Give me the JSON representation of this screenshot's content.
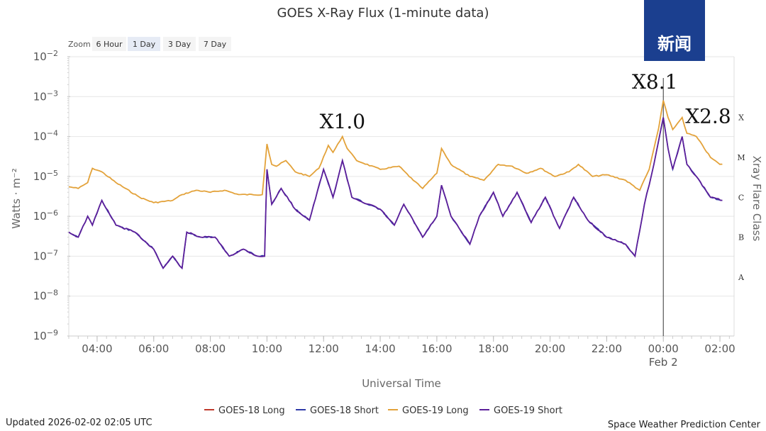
{
  "chart_data": {
    "type": "line",
    "title": "GOES X-Ray Flux (1-minute data)",
    "xlabel": "Universal Time",
    "ylabel": "Watts · m⁻²",
    "y2label": "Xray Flare Class",
    "y_scale": "log",
    "ylim": [
      "1e-9",
      "1e-2"
    ],
    "y_ticks": [
      {
        "value": "1e-2",
        "base": "10",
        "exp": "−2"
      },
      {
        "value": "1e-3",
        "base": "10",
        "exp": "−3"
      },
      {
        "value": "1e-4",
        "base": "10",
        "exp": "−4"
      },
      {
        "value": "1e-5",
        "base": "10",
        "exp": "−5"
      },
      {
        "value": "1e-6",
        "base": "10",
        "exp": "−6"
      },
      {
        "value": "1e-7",
        "base": "10",
        "exp": "−7"
      },
      {
        "value": "1e-8",
        "base": "10",
        "exp": "−8"
      },
      {
        "value": "1e-9",
        "base": "10",
        "exp": "−9"
      }
    ],
    "xlim": [
      "2026-02-01T03:00",
      "2026-02-02T02:30"
    ],
    "x_ticks": [
      {
        "t": "2026-02-01T04:00",
        "label": "04:00"
      },
      {
        "t": "2026-02-01T06:00",
        "label": "06:00"
      },
      {
        "t": "2026-02-01T08:00",
        "label": "08:00"
      },
      {
        "t": "2026-02-01T10:00",
        "label": "10:00"
      },
      {
        "t": "2026-02-01T12:00",
        "label": "12:00"
      },
      {
        "t": "2026-02-01T14:00",
        "label": "14:00"
      },
      {
        "t": "2026-02-01T16:00",
        "label": "16:00"
      },
      {
        "t": "2026-02-01T18:00",
        "label": "18:00"
      },
      {
        "t": "2026-02-01T20:00",
        "label": "20:00"
      },
      {
        "t": "2026-02-01T22:00",
        "label": "22:00"
      },
      {
        "t": "2026-02-02T00:00",
        "label": "00:00",
        "sublabel": "Feb 2"
      },
      {
        "t": "2026-02-02T02:00",
        "label": "02:00"
      }
    ],
    "flare_classes": [
      {
        "label": "X",
        "value": "3e-4"
      },
      {
        "label": "M",
        "value": "3e-5"
      },
      {
        "label": "C",
        "value": "3e-6"
      },
      {
        "label": "B",
        "value": "3e-7"
      },
      {
        "label": "A",
        "value": "3e-8"
      }
    ],
    "vertical_marker": "2026-02-02T00:00",
    "grid": true,
    "legend_position": "bottom-center",
    "series": [
      {
        "name": "GOES-18 Long",
        "color": "#c0392b",
        "visible_line": false
      },
      {
        "name": "GOES-18 Short",
        "color": "#2e3aa8"
      },
      {
        "name": "GOES-19 Long",
        "color": "#e3a23a"
      },
      {
        "name": "GOES-19 Short",
        "color": "#5b1f9a"
      }
    ],
    "long_flux": [
      [
        "2026-02-01T03:00",
        "5.5e-6"
      ],
      [
        "2026-02-01T03:20",
        "5e-6"
      ],
      [
        "2026-02-01T03:40",
        "7e-6"
      ],
      [
        "2026-02-01T03:50",
        "1.6e-5"
      ],
      [
        "2026-02-01T04:10",
        "1.3e-5"
      ],
      [
        "2026-02-01T04:40",
        "7e-6"
      ],
      [
        "2026-02-01T05:30",
        "3e-6"
      ],
      [
        "2026-02-01T06:00",
        "2.2e-6"
      ],
      [
        "2026-02-01T06:40",
        "2.5e-6"
      ],
      [
        "2026-02-01T07:00",
        "3.5e-6"
      ],
      [
        "2026-02-01T07:30",
        "4.5e-6"
      ],
      [
        "2026-02-01T08:00",
        "4e-6"
      ],
      [
        "2026-02-01T08:30",
        "4.5e-6"
      ],
      [
        "2026-02-01T09:00",
        "3.5e-6"
      ],
      [
        "2026-02-01T09:50",
        "3.5e-6"
      ],
      [
        "2026-02-01T10:00",
        "6.5e-5"
      ],
      [
        "2026-02-01T10:10",
        "2e-5"
      ],
      [
        "2026-02-01T10:20",
        "1.8e-5"
      ],
      [
        "2026-02-01T10:40",
        "2.5e-5"
      ],
      [
        "2026-02-01T11:00",
        "1.3e-5"
      ],
      [
        "2026-02-01T11:30",
        "1e-5"
      ],
      [
        "2026-02-01T11:50",
        "1.6e-5"
      ],
      [
        "2026-02-01T12:10",
        "6e-5"
      ],
      [
        "2026-02-01T12:20",
        "4e-5"
      ],
      [
        "2026-02-01T12:40",
        "1e-4"
      ],
      [
        "2026-02-01T12:50",
        "5e-5"
      ],
      [
        "2026-02-01T13:10",
        "2.5e-5"
      ],
      [
        "2026-02-01T14:00",
        "1.5e-5"
      ],
      [
        "2026-02-01T14:40",
        "1.8e-5"
      ],
      [
        "2026-02-01T15:10",
        "8e-6"
      ],
      [
        "2026-02-01T15:30",
        "5e-6"
      ],
      [
        "2026-02-01T16:00",
        "1.2e-5"
      ],
      [
        "2026-02-01T16:10",
        "5e-5"
      ],
      [
        "2026-02-01T16:30",
        "2e-5"
      ],
      [
        "2026-02-01T17:10",
        "1e-5"
      ],
      [
        "2026-02-01T17:40",
        "8e-6"
      ],
      [
        "2026-02-01T18:10",
        "2e-5"
      ],
      [
        "2026-02-01T18:40",
        "1.8e-5"
      ],
      [
        "2026-02-01T19:10",
        "1.2e-5"
      ],
      [
        "2026-02-01T19:40",
        "1.6e-5"
      ],
      [
        "2026-02-01T20:10",
        "1e-5"
      ],
      [
        "2026-02-01T20:40",
        "1.3e-5"
      ],
      [
        "2026-02-01T21:00",
        "2e-5"
      ],
      [
        "2026-02-01T21:30",
        "1e-5"
      ],
      [
        "2026-02-01T22:00",
        "1.1e-5"
      ],
      [
        "2026-02-01T22:40",
        "8e-6"
      ],
      [
        "2026-02-01T23:10",
        "4.5e-6"
      ],
      [
        "2026-02-01T23:30",
        "1.5e-5"
      ],
      [
        "2026-02-01T23:50",
        "1.6e-4"
      ],
      [
        "2026-02-02T00:00",
        "8e-4"
      ],
      [
        "2026-02-02T00:10",
        "3e-4"
      ],
      [
        "2026-02-02T00:20",
        "1.5e-4"
      ],
      [
        "2026-02-02T00:40",
        "3e-4"
      ],
      [
        "2026-02-02T00:50",
        "1.2e-4"
      ],
      [
        "2026-02-02T01:10",
        "1e-4"
      ],
      [
        "2026-02-02T01:40",
        "3e-5"
      ],
      [
        "2026-02-02T02:00",
        "2e-5"
      ],
      [
        "2026-02-02T02:05",
        "2e-5"
      ]
    ],
    "short_flux": [
      [
        "2026-02-01T03:00",
        "4e-7"
      ],
      [
        "2026-02-01T03:20",
        "3e-7"
      ],
      [
        "2026-02-01T03:40",
        "1e-6"
      ],
      [
        "2026-02-01T03:50",
        "6e-7"
      ],
      [
        "2026-02-01T04:10",
        "2.5e-6"
      ],
      [
        "2026-02-01T04:40",
        "6e-7"
      ],
      [
        "2026-02-01T05:20",
        "4e-7"
      ],
      [
        "2026-02-01T06:00",
        "1.5e-7"
      ],
      [
        "2026-02-01T06:20",
        "5e-8"
      ],
      [
        "2026-02-01T06:40",
        "1e-7"
      ],
      [
        "2026-02-01T07:00",
        "5e-8"
      ],
      [
        "2026-02-01T07:10",
        "4e-7"
      ],
      [
        "2026-02-01T07:40",
        "3e-7"
      ],
      [
        "2026-02-01T08:10",
        "3e-7"
      ],
      [
        "2026-02-01T08:40",
        "1e-7"
      ],
      [
        "2026-02-01T09:10",
        "1.5e-7"
      ],
      [
        "2026-02-01T09:40",
        "1e-7"
      ],
      [
        "2026-02-01T09:55",
        "1e-7"
      ],
      [
        "2026-02-01T10:00",
        "1.5e-5"
      ],
      [
        "2026-02-01T10:10",
        "2e-6"
      ],
      [
        "2026-02-01T10:30",
        "5e-6"
      ],
      [
        "2026-02-01T11:00",
        "1.5e-6"
      ],
      [
        "2026-02-01T11:30",
        "8e-7"
      ],
      [
        "2026-02-01T12:00",
        "1.5e-5"
      ],
      [
        "2026-02-01T12:20",
        "3e-6"
      ],
      [
        "2026-02-01T12:40",
        "2.5e-5"
      ],
      [
        "2026-02-01T13:00",
        "3e-6"
      ],
      [
        "2026-02-01T14:00",
        "1.5e-6"
      ],
      [
        "2026-02-01T14:30",
        "6e-7"
      ],
      [
        "2026-02-01T14:50",
        "2e-6"
      ],
      [
        "2026-02-01T15:30",
        "3e-7"
      ],
      [
        "2026-02-01T16:00",
        "1e-6"
      ],
      [
        "2026-02-01T16:10",
        "6e-6"
      ],
      [
        "2026-02-01T16:30",
        "1e-6"
      ],
      [
        "2026-02-01T17:10",
        "2e-7"
      ],
      [
        "2026-02-01T17:30",
        "1e-6"
      ],
      [
        "2026-02-01T18:00",
        "4e-6"
      ],
      [
        "2026-02-01T18:20",
        "1e-6"
      ],
      [
        "2026-02-01T18:50",
        "4e-6"
      ],
      [
        "2026-02-01T19:20",
        "7e-7"
      ],
      [
        "2026-02-01T19:50",
        "3e-6"
      ],
      [
        "2026-02-01T20:20",
        "5e-7"
      ],
      [
        "2026-02-01T20:50",
        "3e-6"
      ],
      [
        "2026-02-01T21:20",
        "8e-7"
      ],
      [
        "2026-02-01T22:00",
        "3e-7"
      ],
      [
        "2026-02-01T22:40",
        "2e-7"
      ],
      [
        "2026-02-01T23:00",
        "1e-7"
      ],
      [
        "2026-02-01T23:20",
        "2e-6"
      ],
      [
        "2026-02-01T23:40",
        "2e-5"
      ],
      [
        "2026-02-02T00:00",
        "3e-4"
      ],
      [
        "2026-02-02T00:10",
        "5e-5"
      ],
      [
        "2026-02-02T00:20",
        "1.5e-5"
      ],
      [
        "2026-02-02T00:40",
        "1e-4"
      ],
      [
        "2026-02-02T00:50",
        "2e-5"
      ],
      [
        "2026-02-02T01:10",
        "1e-5"
      ],
      [
        "2026-02-02T01:40",
        "3e-6"
      ],
      [
        "2026-02-02T02:05",
        "2.5e-6"
      ]
    ],
    "annotations": [
      {
        "text": "X1.0",
        "t": "2026-02-01T12:40",
        "value": "1.6e-4"
      },
      {
        "text": "X8.1",
        "t": "2026-02-02T00:00",
        "value": "1.6e-3"
      },
      {
        "text": "X2.8",
        "t": "2026-02-02T01:20",
        "value": "2.2e-4"
      }
    ]
  },
  "zoom": {
    "label": "Zoom",
    "options": [
      "6 Hour",
      "1 Day",
      "3 Day",
      "7 Day"
    ],
    "selected": "1 Day"
  },
  "footer": {
    "updated": "Updated 2026-02-02 02:05 UTC",
    "credit": "Space Weather Prediction Center"
  },
  "logo": {
    "text": "新闻",
    "bg_color": "#1b3f8f"
  }
}
